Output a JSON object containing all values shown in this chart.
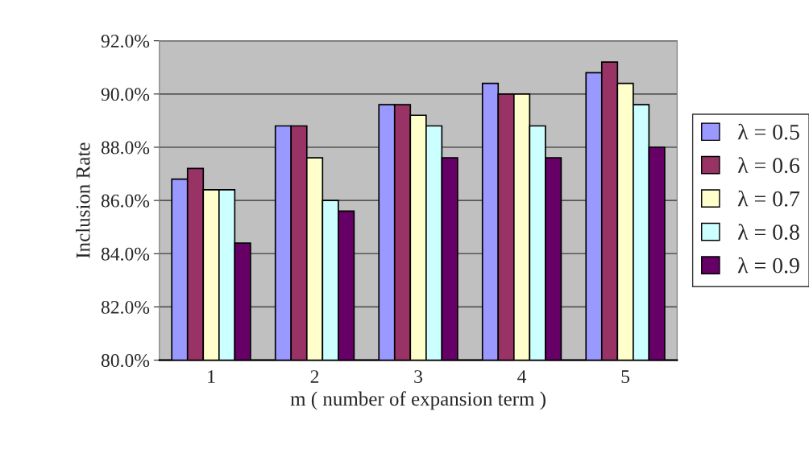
{
  "chart_data": {
    "type": "bar",
    "xlabel": "m ( number of expansion term )",
    "ylabel": "Inclusion Rate",
    "categories": [
      "1",
      "2",
      "3",
      "4",
      "5"
    ],
    "series": [
      {
        "name": "λ = 0.5",
        "color": "#9999ff",
        "values": [
          86.8,
          88.8,
          89.6,
          90.4,
          90.8
        ]
      },
      {
        "name": "λ = 0.6",
        "color": "#993366",
        "values": [
          87.2,
          88.8,
          89.6,
          90.0,
          91.2
        ]
      },
      {
        "name": "λ = 0.7",
        "color": "#ffffcc",
        "values": [
          86.4,
          87.6,
          89.2,
          90.0,
          90.4
        ]
      },
      {
        "name": "λ = 0.8",
        "color": "#ccffff",
        "values": [
          86.4,
          86.0,
          88.8,
          88.8,
          89.6
        ]
      },
      {
        "name": "λ = 0.9",
        "color": "#660066",
        "values": [
          84.4,
          85.6,
          87.6,
          87.6,
          88.0
        ]
      }
    ],
    "ylim": [
      80,
      92
    ],
    "yticks": [
      {
        "value": 80,
        "label": "80.0%"
      },
      {
        "value": 82,
        "label": "82.0%"
      },
      {
        "value": 84,
        "label": "84.0%"
      },
      {
        "value": 86,
        "label": "86.0%"
      },
      {
        "value": 88,
        "label": "88.0%"
      },
      {
        "value": 90,
        "label": "90.0%"
      },
      {
        "value": 92,
        "label": "92.0%"
      }
    ],
    "grid": "y",
    "legend": "right"
  }
}
